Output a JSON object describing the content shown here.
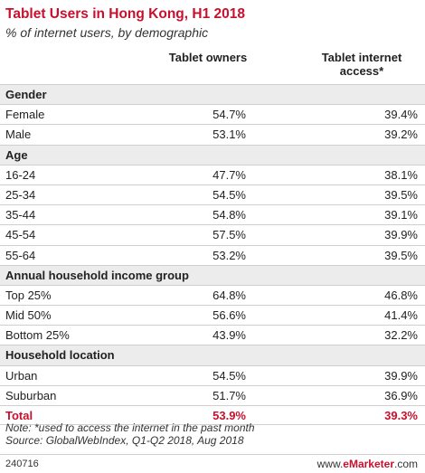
{
  "chart_data": {
    "type": "table",
    "title": "Tablet Users in Hong Kong, H1 2018",
    "subtitle": "% of internet users, by demographic",
    "columns": [
      "Tablet owners",
      "Tablet internet access*"
    ],
    "groups": [
      {
        "name": "Gender",
        "rows": [
          {
            "label": "Female",
            "values": [
              "54.7%",
              "39.4%"
            ]
          },
          {
            "label": "Male",
            "values": [
              "53.1%",
              "39.2%"
            ]
          }
        ]
      },
      {
        "name": "Age",
        "rows": [
          {
            "label": "16-24",
            "values": [
              "47.7%",
              "38.1%"
            ]
          },
          {
            "label": "25-34",
            "values": [
              "54.5%",
              "39.5%"
            ]
          },
          {
            "label": "35-44",
            "values": [
              "54.8%",
              "39.1%"
            ]
          },
          {
            "label": "45-54",
            "values": [
              "57.5%",
              "39.9%"
            ]
          },
          {
            "label": "55-64",
            "values": [
              "53.2%",
              "39.5%"
            ]
          }
        ]
      },
      {
        "name": "Annual household income group",
        "rows": [
          {
            "label": "Top 25%",
            "values": [
              "64.8%",
              "46.8%"
            ]
          },
          {
            "label": "Mid 50%",
            "values": [
              "56.6%",
              "41.4%"
            ]
          },
          {
            "label": "Bottom 25%",
            "values": [
              "43.9%",
              "32.2%"
            ]
          }
        ]
      },
      {
        "name": "Household location",
        "rows": [
          {
            "label": "Urban",
            "values": [
              "54.5%",
              "39.9%"
            ]
          },
          {
            "label": "Suburban",
            "values": [
              "51.7%",
              "36.9%"
            ]
          }
        ]
      }
    ],
    "total": {
      "label": "Total",
      "values": [
        "53.9%",
        "39.3%"
      ]
    },
    "note": "Note: *used to access the internet in the past month",
    "source": "Source: GlobalWebIndex, Q1-Q2 2018, Aug 2018"
  },
  "footer": {
    "id": "240716",
    "brand_prefix": "www.",
    "brand_name": "eMarketer",
    "brand_suffix": ".com"
  },
  "colors": {
    "accent": "#c8102e",
    "section_bg": "#ececec",
    "rule": "#cfcfcf"
  }
}
